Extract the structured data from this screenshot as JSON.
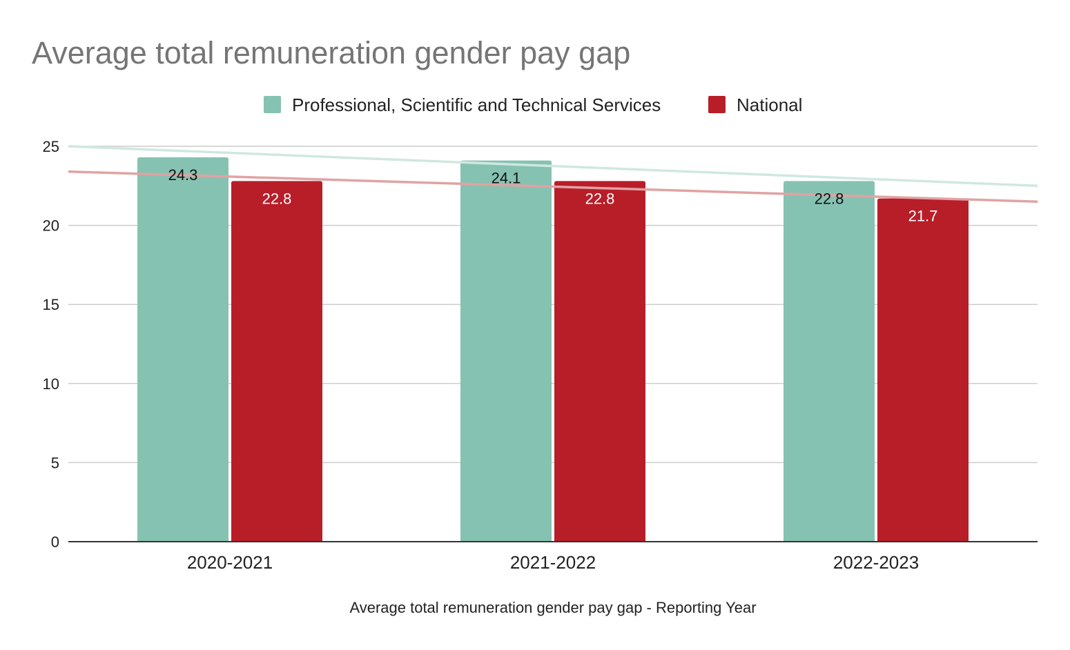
{
  "chart_data": {
    "type": "bar",
    "title": "Average total remuneration gender pay gap",
    "xlabel": "Average total remuneration gender pay gap - Reporting Year",
    "ylabel": "",
    "categories": [
      "2020-2021",
      "2021-2022",
      "2022-2023"
    ],
    "series": [
      {
        "name": "Professional, Scientific and Technical Services",
        "values": [
          24.3,
          24.1,
          22.8
        ],
        "color": "#86c2b2",
        "label_color": "#111111",
        "trendline": {
          "start": 25.0,
          "end": 22.5,
          "color": "#cfe8e0"
        }
      },
      {
        "name": "National",
        "values": [
          22.8,
          22.8,
          21.7
        ],
        "color": "#b81e28",
        "label_color": "#ffffff",
        "trendline": {
          "start": 23.4,
          "end": 21.5,
          "color": "#e0a3a3"
        }
      }
    ],
    "ylim": [
      0,
      25
    ],
    "yticks": [
      0,
      5,
      10,
      15,
      20,
      25
    ],
    "grid": true,
    "legend": "top-center",
    "data_labels": true
  }
}
